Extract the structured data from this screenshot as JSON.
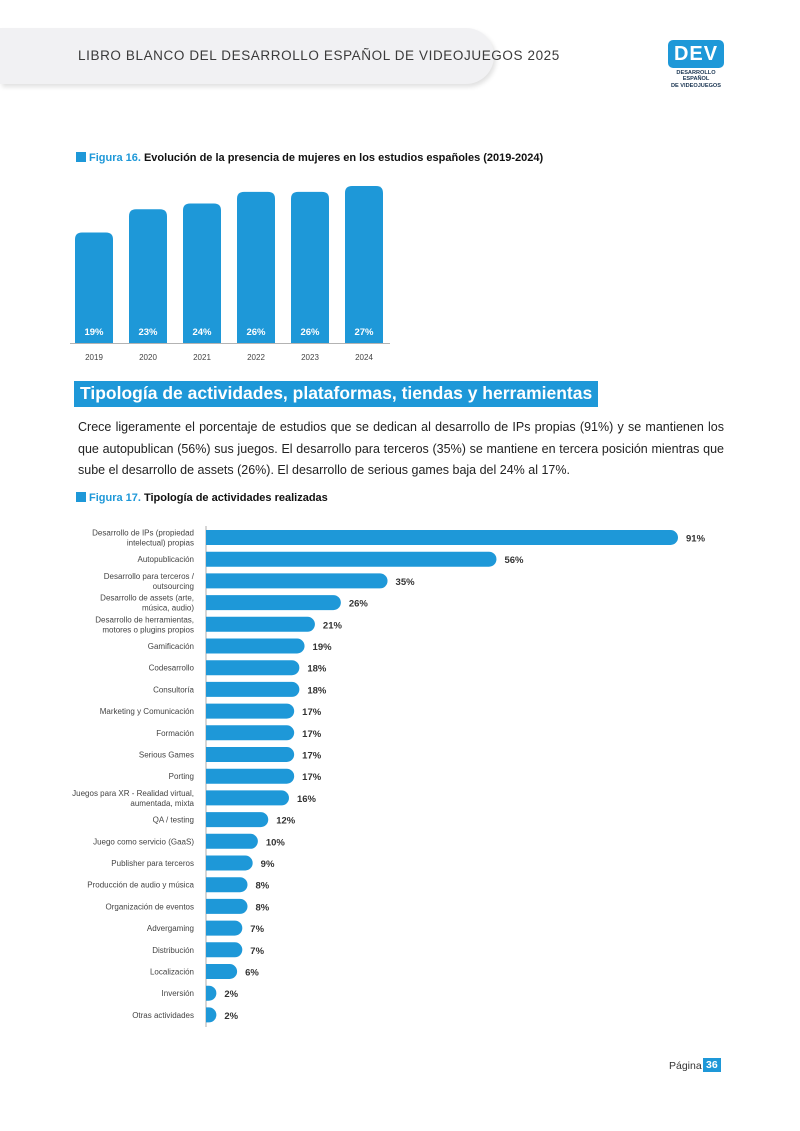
{
  "header": {
    "title": "LIBRO BLANCO DEL DESARROLLO ESPAÑOL DE VIDEOJUEGOS 2025",
    "logo_text": "DEV",
    "logo_subtitle_1": "DESARROLLO ESPAÑOL",
    "logo_subtitle_2": "DE VIDEOJUEGOS"
  },
  "figure16": {
    "label": "Figura 16.",
    "title": "Evolución de la presencia de mujeres en los estudios españoles (2019-2024)"
  },
  "section": {
    "heading": "Tipología de actividades, plataformas, tiendas y herramientas",
    "paragraph": "Crece ligeramente el porcentaje de estudios que se dedican al desarrollo de IPs propias (91%) y se mantienen los que autopublican (56%) sus juegos. El desarrollo para terceros (35%) se mantiene en tercera posición mientras que sube el desarrollo de assets (26%). El desarrollo de serious games baja del 24% al 17%."
  },
  "figure17": {
    "label": "Figura 17.",
    "title": "Tipología de actividades realizadas"
  },
  "footer": {
    "page_label": "Página",
    "page_number": "36"
  },
  "chart_data": [
    {
      "type": "bar",
      "categories": [
        "2019",
        "2020",
        "2021",
        "2022",
        "2023",
        "2024"
      ],
      "values": [
        19,
        23,
        24,
        26,
        26,
        27
      ],
      "data_labels": [
        "19%",
        "23%",
        "24%",
        "26%",
        "26%",
        "27%"
      ],
      "color": "#1e98d8",
      "grid": false
    },
    {
      "type": "bar",
      "orientation": "horizontal",
      "categories": [
        "Desarrollo de IPs (propiedad intelectual) propias",
        "Autopublicación",
        "Desarrollo para terceros / outsourcing",
        "Desarrollo de assets (arte, música, audio)",
        "Desarrollo de herramientas, motores o plugins propios",
        "Gamificación",
        "Codesarrollo",
        "Consultoría",
        "Marketing y Comunicación",
        "Formación",
        "Serious Games",
        "Porting",
        "Juegos para XR - Realidad virtual, aumentada, mixta",
        "QA / testing",
        "Juego como servicio (GaaS)",
        "Publisher para terceros",
        "Producción de audio y música",
        "Organización de eventos",
        "Advergaming",
        "Distribución",
        "Localización",
        "Inversión",
        "Otras actividades"
      ],
      "label_lines": [
        [
          "Desarrollo de IPs (propiedad",
          "intelectual) propias"
        ],
        [
          "Autopublicación"
        ],
        [
          "Desarrollo para terceros /",
          "outsourcing"
        ],
        [
          "Desarrollo de assets (arte,",
          "música, audio)"
        ],
        [
          "Desarrollo de herramientas,",
          "motores o plugins propios"
        ],
        [
          "Gamificación"
        ],
        [
          "Codesarrollo"
        ],
        [
          "Consultoría"
        ],
        [
          "Marketing y Comunicación"
        ],
        [
          "Formación"
        ],
        [
          "Serious Games"
        ],
        [
          "Porting"
        ],
        [
          "Juegos para XR - Realidad virtual,",
          "aumentada, mixta"
        ],
        [
          "QA / testing"
        ],
        [
          "Juego como servicio (GaaS)"
        ],
        [
          "Publisher para terceros"
        ],
        [
          "Producción de audio y música"
        ],
        [
          "Organización de eventos"
        ],
        [
          "Advergaming"
        ],
        [
          "Distribución"
        ],
        [
          "Localización"
        ],
        [
          "Inversión"
        ],
        [
          "Otras actividades"
        ]
      ],
      "values": [
        91,
        56,
        35,
        26,
        21,
        19,
        18,
        18,
        17,
        17,
        17,
        17,
        16,
        12,
        10,
        9,
        8,
        8,
        7,
        7,
        6,
        2,
        2
      ],
      "data_labels": [
        "91%",
        "56%",
        "35%",
        "26%",
        "21%",
        "19%",
        "18%",
        "18%",
        "17%",
        "17%",
        "17%",
        "17%",
        "16%",
        "12%",
        "10%",
        "9%",
        "8%",
        "8%",
        "7%",
        "7%",
        "6%",
        "2%",
        "2%"
      ],
      "color": "#1e98d8",
      "grid": false
    }
  ]
}
